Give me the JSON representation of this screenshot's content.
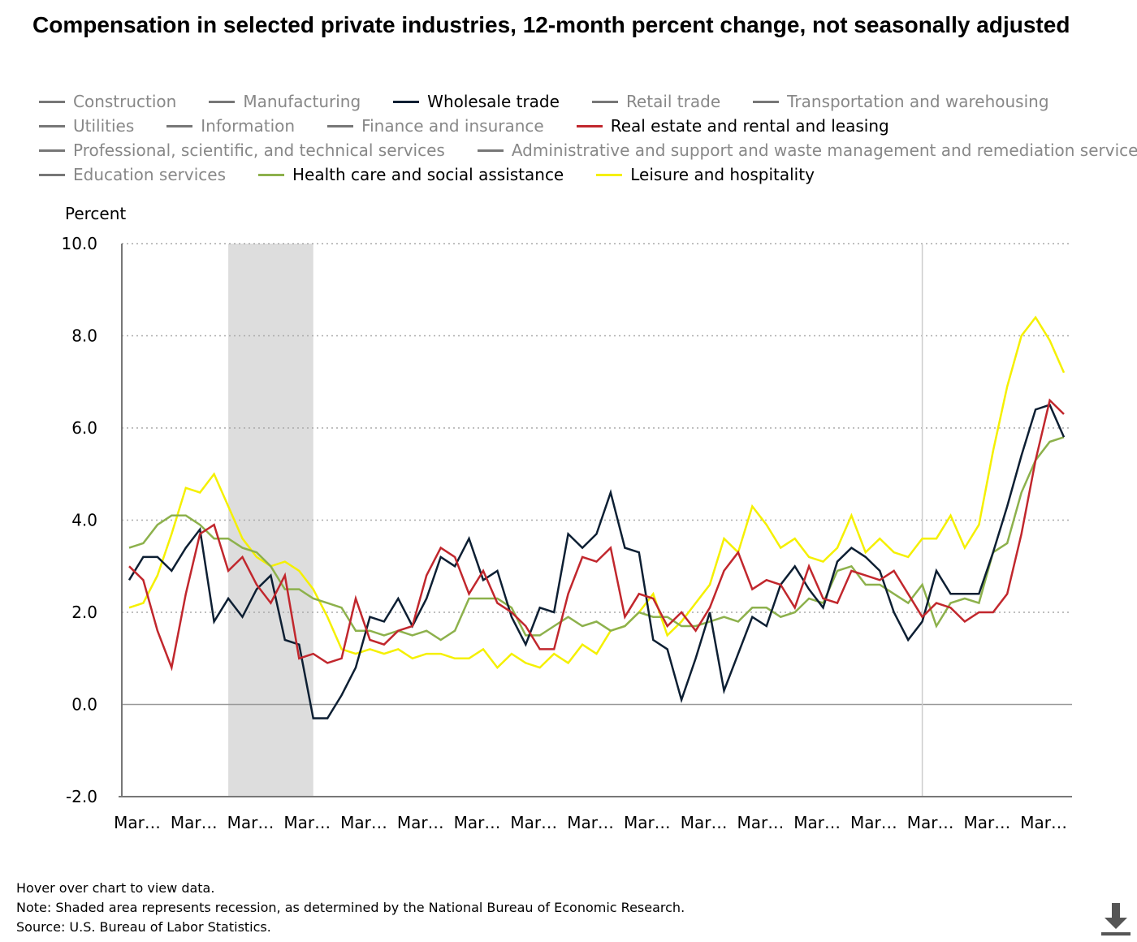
{
  "title": "Compensation in selected private industries, 12-month percent change, not seasonally adjusted",
  "legend": [
    {
      "label": "Construction",
      "color": "#777777",
      "active": false
    },
    {
      "label": "Manufacturing",
      "color": "#777777",
      "active": false
    },
    {
      "label": "Wholesale trade",
      "color": "#0d1f33",
      "active": true
    },
    {
      "label": "Retail trade",
      "color": "#777777",
      "active": false
    },
    {
      "label": "Transportation and warehousing",
      "color": "#777777",
      "active": false
    },
    {
      "label": "Utilities",
      "color": "#777777",
      "active": false
    },
    {
      "label": "Information",
      "color": "#777777",
      "active": false
    },
    {
      "label": "Finance and insurance",
      "color": "#777777",
      "active": false
    },
    {
      "label": "Real estate and rental and leasing",
      "color": "#c1272d",
      "active": true
    },
    {
      "label": "Professional, scientific, and technical services",
      "color": "#777777",
      "active": false
    },
    {
      "label": "Administrative and support and waste management and remediation services",
      "color": "#777777",
      "active": false
    },
    {
      "label": "Education services",
      "color": "#777777",
      "active": false
    },
    {
      "label": "Health care and social assistance",
      "color": "#8db14c",
      "active": true
    },
    {
      "label": "Leisure and hospitality",
      "color": "#f5f000",
      "active": true
    }
  ],
  "chart_data": {
    "type": "line",
    "ylabel": "Percent",
    "ylim": [
      -2.0,
      10.0
    ],
    "yticks": [
      "10.0",
      "8.0",
      "6.0",
      "4.0",
      "2.0",
      "0.0",
      "-2.0"
    ],
    "xtick_labels": [
      "Mar…",
      "Mar…",
      "Mar…",
      "Mar…",
      "Mar…",
      "Mar…",
      "Mar…",
      "Mar…",
      "Mar…",
      "Mar…",
      "Mar…",
      "Mar…",
      "Mar…",
      "Mar…",
      "Mar…",
      "Mar…",
      "Mar…"
    ],
    "grid": "horizontal dotted",
    "recession_shading": {
      "from_index": 7,
      "to_index": 13,
      "color": "#dddddd"
    },
    "reference_line_index": 56,
    "series": [
      {
        "name": "Wholesale trade",
        "color": "#0d1f33",
        "values": [
          2.7,
          3.2,
          3.2,
          2.9,
          3.4,
          3.8,
          1.8,
          2.3,
          1.9,
          2.5,
          2.8,
          1.4,
          1.3,
          -0.3,
          -0.3,
          0.2,
          0.8,
          1.9,
          1.8,
          2.3,
          1.7,
          2.3,
          3.2,
          3.0,
          3.6,
          2.7,
          2.9,
          1.9,
          1.3,
          2.1,
          2.0,
          3.7,
          3.4,
          3.7,
          4.6,
          3.4,
          3.3,
          1.4,
          1.2,
          0.1,
          1.0,
          2.0,
          0.3,
          1.1,
          1.9,
          1.7,
          2.6,
          3.0,
          2.5,
          2.1,
          3.1,
          3.4,
          3.2,
          2.9,
          2.0,
          1.4,
          1.8,
          2.9,
          2.4,
          2.4,
          2.4,
          3.3,
          4.3,
          5.4,
          6.4,
          6.5,
          5.8
        ]
      },
      {
        "name": "Real estate and rental and leasing",
        "color": "#c1272d",
        "values": [
          3.0,
          2.7,
          1.6,
          0.8,
          2.4,
          3.7,
          3.9,
          2.9,
          3.2,
          2.6,
          2.2,
          2.8,
          1.0,
          1.1,
          0.9,
          1.0,
          2.3,
          1.4,
          1.3,
          1.6,
          1.7,
          2.8,
          3.4,
          3.2,
          2.4,
          2.9,
          2.2,
          2.0,
          1.7,
          1.2,
          1.2,
          2.4,
          3.2,
          3.1,
          3.4,
          1.9,
          2.4,
          2.3,
          1.7,
          2.0,
          1.6,
          2.1,
          2.9,
          3.3,
          2.5,
          2.7,
          2.6,
          2.1,
          3.0,
          2.3,
          2.2,
          2.9,
          2.8,
          2.7,
          2.9,
          2.4,
          1.9,
          2.2,
          2.1,
          1.8,
          2.0,
          2.0,
          2.4,
          3.7,
          5.3,
          6.6,
          6.3
        ]
      },
      {
        "name": "Health care and social assistance",
        "color": "#8db14c",
        "values": [
          3.4,
          3.5,
          3.9,
          4.1,
          4.1,
          3.9,
          3.6,
          3.6,
          3.4,
          3.3,
          3.0,
          2.5,
          2.5,
          2.3,
          2.2,
          2.1,
          1.6,
          1.6,
          1.5,
          1.6,
          1.5,
          1.6,
          1.4,
          1.6,
          2.3,
          2.3,
          2.3,
          2.1,
          1.5,
          1.5,
          1.7,
          1.9,
          1.7,
          1.8,
          1.6,
          1.7,
          2.0,
          1.9,
          1.9,
          1.7,
          1.7,
          1.8,
          1.9,
          1.8,
          2.1,
          2.1,
          1.9,
          2.0,
          2.3,
          2.2,
          2.9,
          3.0,
          2.6,
          2.6,
          2.4,
          2.2,
          2.6,
          1.7,
          2.2,
          2.3,
          2.2,
          3.3,
          3.5,
          4.6,
          5.3,
          5.7,
          5.8
        ]
      },
      {
        "name": "Leisure and hospitality",
        "color": "#f5f000",
        "values": [
          2.1,
          2.2,
          2.8,
          3.7,
          4.7,
          4.6,
          5.0,
          4.3,
          3.6,
          3.2,
          3.0,
          3.1,
          2.9,
          2.5,
          1.9,
          1.2,
          1.1,
          1.2,
          1.1,
          1.2,
          1.0,
          1.1,
          1.1,
          1.0,
          1.0,
          1.2,
          0.8,
          1.1,
          0.9,
          0.8,
          1.1,
          0.9,
          1.3,
          1.1,
          1.6,
          1.7,
          2.0,
          2.4,
          1.5,
          1.8,
          2.2,
          2.6,
          3.6,
          3.3,
          4.3,
          3.9,
          3.4,
          3.6,
          3.2,
          3.1,
          3.4,
          4.1,
          3.3,
          3.6,
          3.3,
          3.2,
          3.6,
          3.6,
          4.1,
          3.4,
          3.9,
          5.5,
          6.9,
          8.0,
          8.4,
          7.9,
          7.2
        ]
      }
    ]
  },
  "footnotes": [
    "Hover over chart to view data.",
    "Note: Shaded area represents recession, as determined by the National Bureau of Economic Research.",
    "Source: U.S. Bureau of Labor Statistics."
  ],
  "download_icon": "download-icon"
}
